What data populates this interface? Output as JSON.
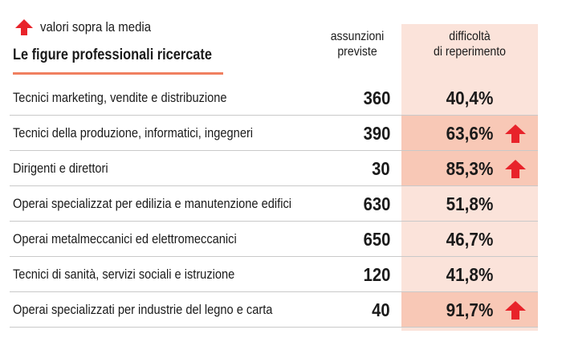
{
  "legend": {
    "text": "valori sopra la media",
    "icon": "red-up-arrow-icon"
  },
  "title": "Le figure professionali ricercate",
  "columns": {
    "assunzioni": [
      "assunzioni",
      "previste"
    ],
    "difficolta": [
      "difficoltà",
      "di reperimento"
    ]
  },
  "colors": {
    "accent": "#e8232a",
    "underline": "#f08060",
    "highlight": "#f8c8b6",
    "column_bg": "#fbe3da"
  },
  "rows": [
    {
      "label": "Tecnici marketing, vendite e distribuzione",
      "assunzioni": "360",
      "difficolta": "40,4%",
      "above_average": false
    },
    {
      "label": "Tecnici della produzione, informatici, ingegneri",
      "assunzioni": "390",
      "difficolta": "63,6%",
      "above_average": true
    },
    {
      "label": "Dirigenti e direttori",
      "assunzioni": "30",
      "difficolta": "85,3%",
      "above_average": true
    },
    {
      "label": "Operai specializzat per edilizia e manutenzione edifici",
      "assunzioni": "630",
      "difficolta": "51,8%",
      "above_average": false
    },
    {
      "label": "Operai metalmeccanici ed elettromeccanici",
      "assunzioni": "650",
      "difficolta": "46,7%",
      "above_average": false
    },
    {
      "label": "Tecnici di sanità, servizi sociali e istruzione",
      "assunzioni": "120",
      "difficolta": "41,8%",
      "above_average": false
    },
    {
      "label": "Operai specializzati per industrie del legno e carta",
      "assunzioni": "40",
      "difficolta": "91,7%",
      "above_average": true
    }
  ]
}
